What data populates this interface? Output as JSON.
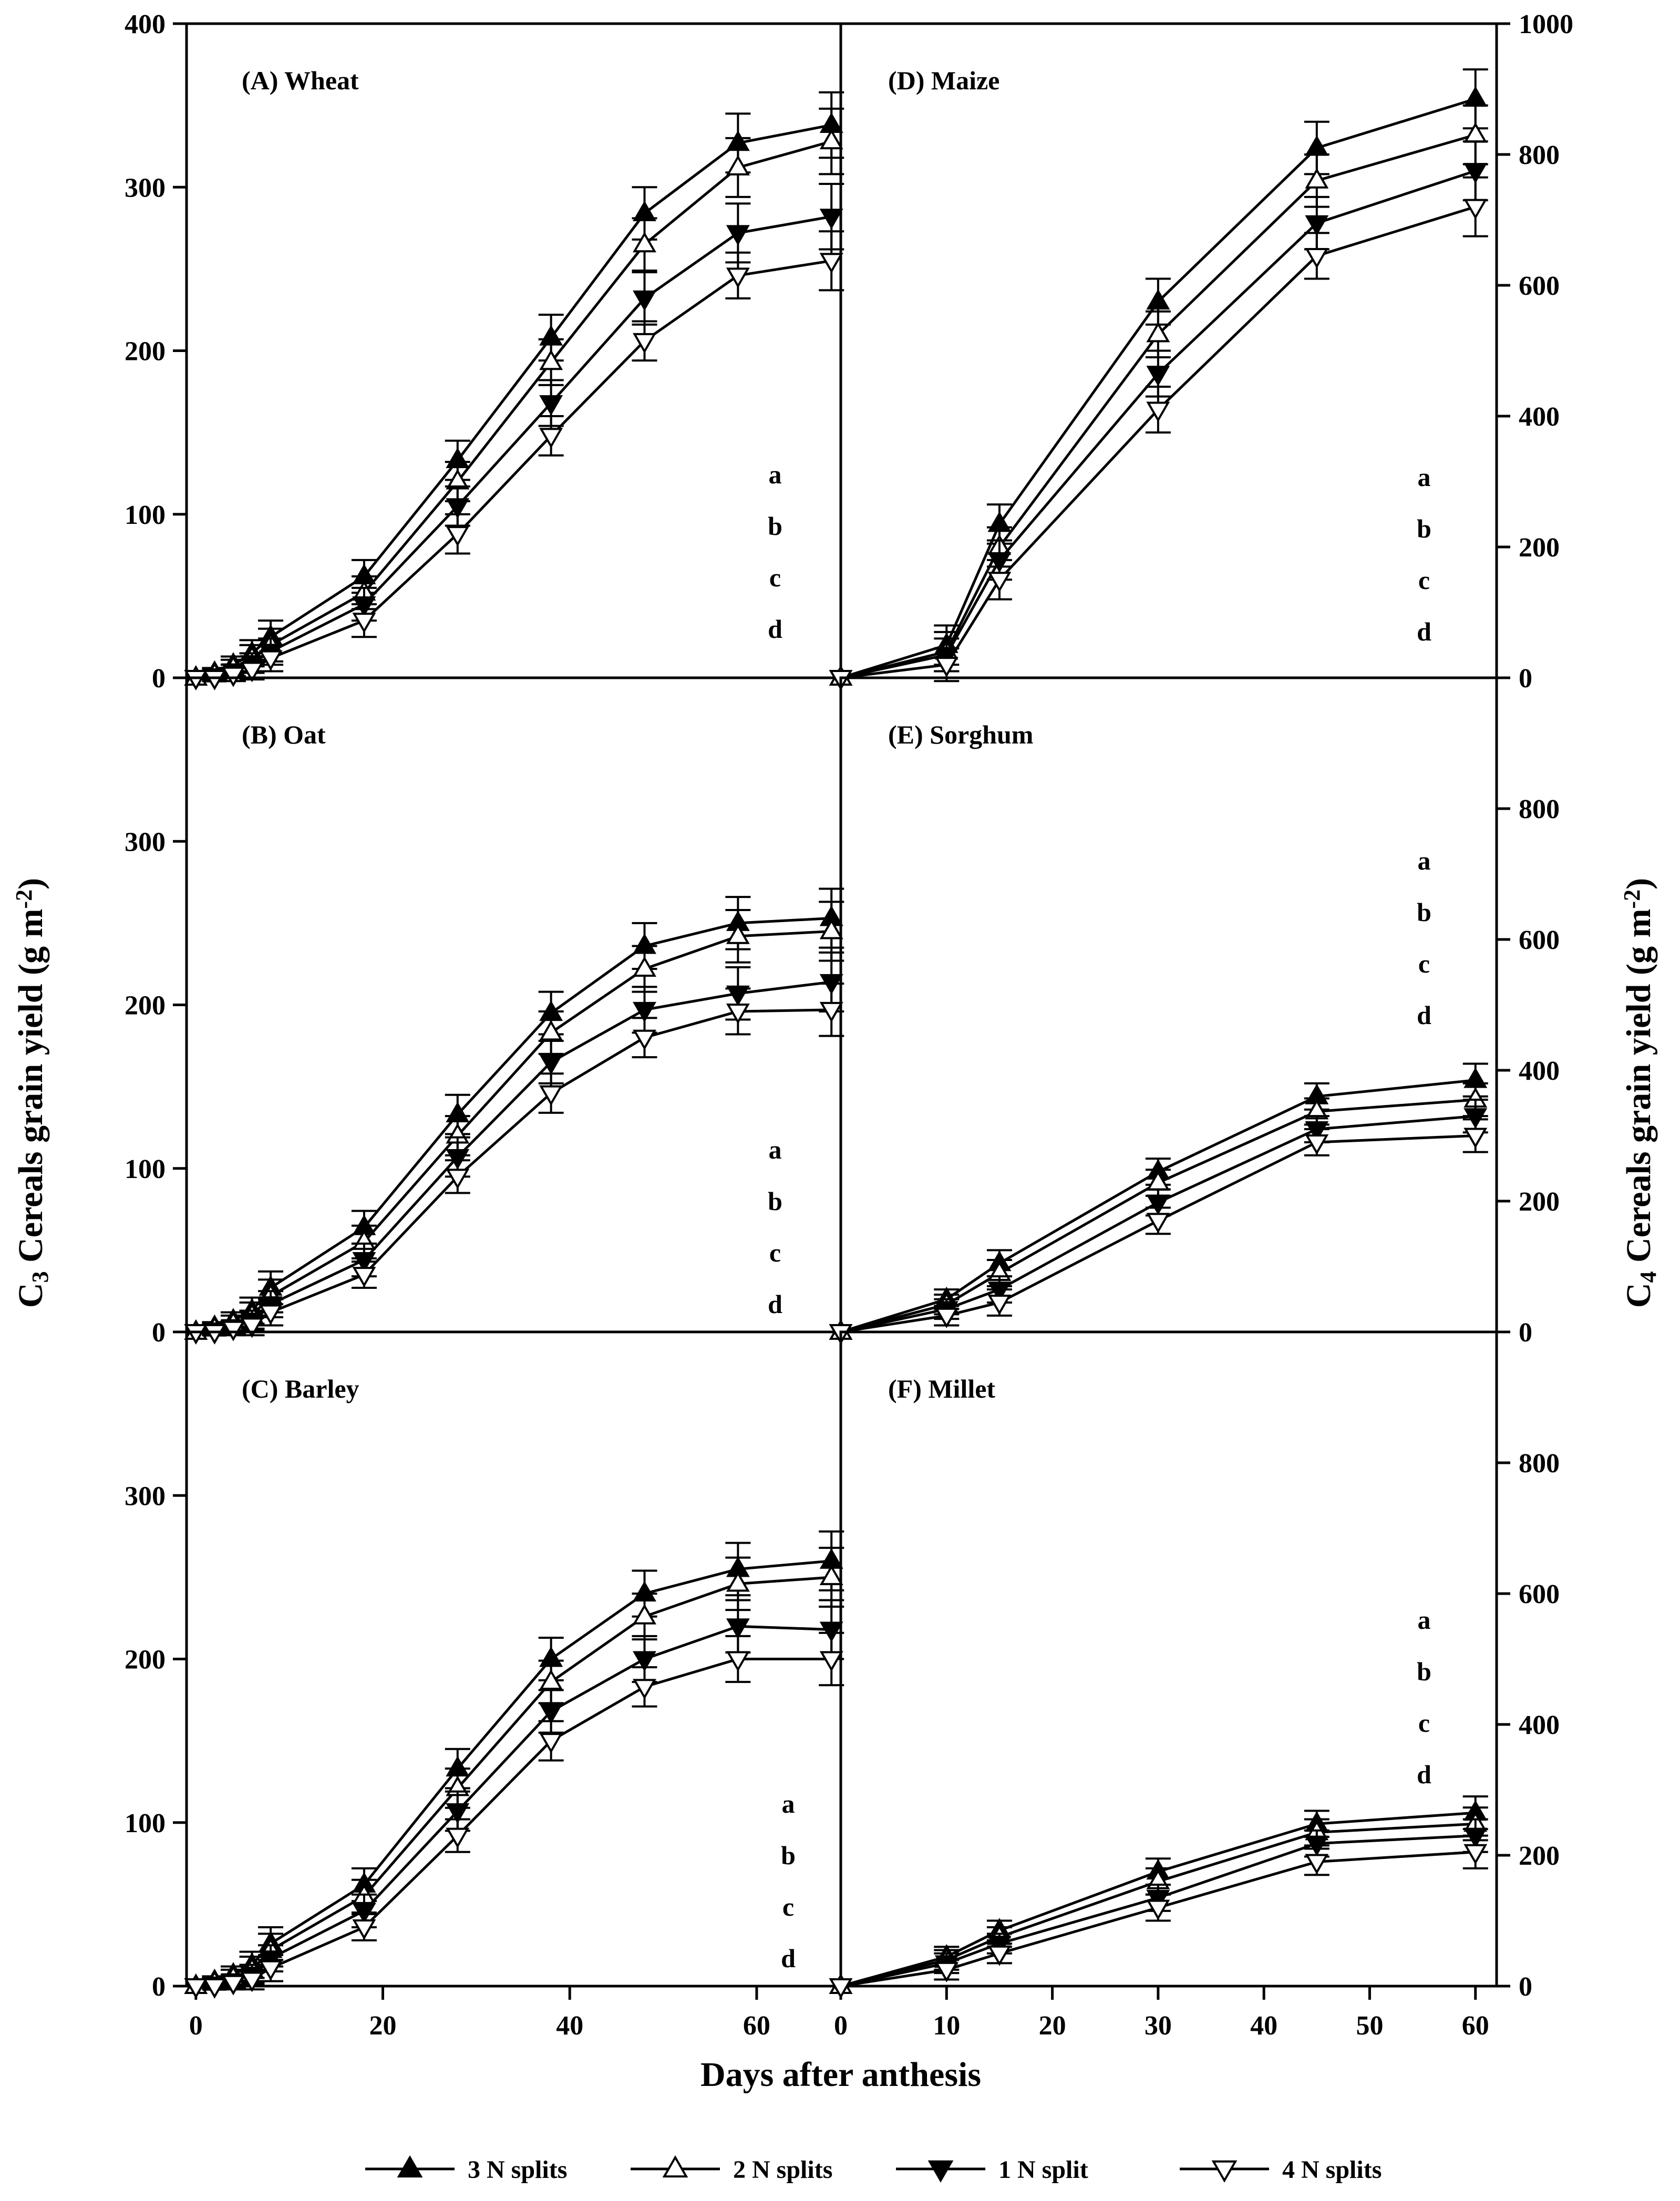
{
  "chart_data": {
    "type": "line",
    "xlabel": "Days after anthesis",
    "ylabel_left": "C3 Cereals grain yield (g m-2)",
    "ylabel_right": "C4 Cereals grain yield (g m-2)",
    "ylabel_left_parts": {
      "prefix": "C",
      "sub": "3",
      "text": " Cereals grain yield (g m",
      "sup": "-2",
      "suffix": ")"
    },
    "ylabel_right_parts": {
      "prefix": "C",
      "sub": "4",
      "text": " Cereals grain yield (g m",
      "sup": "-2",
      "suffix": ")"
    },
    "legend": [
      {
        "name": "3 N splits",
        "marker": "triangle-up",
        "filled": true
      },
      {
        "name": "2 N splits",
        "marker": "triangle-up",
        "filled": false
      },
      {
        "name": "1 N split",
        "marker": "triangle-down",
        "filled": true
      },
      {
        "name": "4 N splits",
        "marker": "triangle-down",
        "filled": false
      }
    ],
    "left_x_ticks": [
      0,
      20,
      40,
      60
    ],
    "right_x_ticks": [
      0,
      10,
      20,
      30,
      40,
      50,
      60
    ],
    "panels": [
      {
        "title": "(A) Wheat",
        "side": "left",
        "row": 0,
        "xlim": [
          -1,
          69
        ],
        "ylim": [
          0,
          400
        ],
        "yticks": [
          "0",
          "100",
          "200",
          "300",
          "400"
        ],
        "letters": [
          "a",
          "b",
          "c",
          "d"
        ],
        "x": [
          0,
          2,
          4,
          6,
          8,
          18,
          28,
          38,
          48,
          58,
          68
        ],
        "series": [
          {
            "name": "3 N splits",
            "values": [
              0,
              3,
              8,
              15,
              25,
              62,
              133,
              208,
              284,
              327,
              338
            ],
            "err": [
              0,
              3,
              5,
              8,
              10,
              10,
              12,
              14,
              16,
              18,
              20
            ]
          },
          {
            "name": "2 N splits",
            "values": [
              0,
              2,
              6,
              12,
              20,
              52,
              120,
              193,
              265,
              312,
              328
            ],
            "err": [
              0,
              3,
              5,
              8,
              10,
              10,
              12,
              14,
              16,
              18,
              20
            ]
          },
          {
            "name": "1 N split",
            "values": [
              0,
              1,
              4,
              9,
              16,
              45,
              105,
              168,
              232,
              272,
              282
            ],
            "err": [
              0,
              2,
              4,
              6,
              8,
              10,
              12,
              14,
              16,
              18,
              20
            ]
          },
          {
            "name": "4 N splits",
            "values": [
              0,
              0,
              2,
              5,
              12,
              35,
              88,
              148,
              206,
              246,
              255
            ],
            "err": [
              0,
              2,
              4,
              6,
              8,
              10,
              12,
              12,
              12,
              14,
              18
            ]
          }
        ]
      },
      {
        "title": "(B) Oat",
        "side": "left",
        "row": 1,
        "xlim": [
          -1,
          69
        ],
        "ylim": [
          0,
          400
        ],
        "yticks": [
          "0",
          "100",
          "200",
          "300"
        ],
        "letters": [
          "a",
          "b",
          "c",
          "d"
        ],
        "x": [
          0,
          2,
          4,
          6,
          8,
          18,
          28,
          38,
          48,
          58,
          68
        ],
        "series": [
          {
            "name": "3 N splits",
            "values": [
              0,
              3,
              7,
              13,
              27,
              64,
              133,
              195,
              236,
              250,
              253
            ],
            "err": [
              0,
              3,
              5,
              8,
              10,
              10,
              12,
              13,
              14,
              16,
              18
            ]
          },
          {
            "name": "2 N splits",
            "values": [
              0,
              2,
              5,
              10,
              22,
              55,
              120,
              183,
              222,
              242,
              245
            ],
            "err": [
              0,
              3,
              5,
              8,
              10,
              10,
              12,
              13,
              14,
              16,
              18
            ]
          },
          {
            "name": "1 N split",
            "values": [
              0,
              1,
              3,
              7,
              17,
              44,
              107,
              165,
              197,
              207,
              214
            ],
            "err": [
              0,
              2,
              4,
              6,
              8,
              10,
              12,
              13,
              14,
              16,
              18
            ]
          },
          {
            "name": "4 N splits",
            "values": [
              0,
              0,
              2,
              4,
              12,
              35,
              95,
              146,
              180,
              196,
              197
            ],
            "err": [
              0,
              2,
              4,
              6,
              8,
              8,
              10,
              12,
              12,
              14,
              16
            ]
          }
        ]
      },
      {
        "title": "(C) Barley",
        "side": "left",
        "row": 2,
        "xlim": [
          -1,
          69
        ],
        "ylim": [
          0,
          400
        ],
        "yticks": [
          "0",
          "100",
          "200",
          "300"
        ],
        "letters": [
          "a",
          "b",
          "c",
          "d"
        ],
        "x": [
          0,
          2,
          4,
          6,
          8,
          18,
          28,
          38,
          48,
          58,
          68
        ],
        "series": [
          {
            "name": "3 N splits",
            "values": [
              0,
              3,
              7,
              13,
              26,
              62,
              133,
              200,
              240,
              255,
              260
            ],
            "err": [
              0,
              3,
              5,
              8,
              10,
              10,
              12,
              13,
              14,
              16,
              18
            ]
          },
          {
            "name": "2 N splits",
            "values": [
              0,
              2,
              5,
              10,
              22,
              55,
              121,
              186,
              226,
              246,
              250
            ],
            "err": [
              0,
              3,
              5,
              8,
              10,
              10,
              12,
              13,
              14,
              16,
              18
            ]
          },
          {
            "name": "1 N split",
            "values": [
              0,
              1,
              3,
              7,
              17,
              46,
              107,
              168,
              200,
              220,
              218
            ],
            "err": [
              0,
              2,
              4,
              6,
              8,
              10,
              12,
              13,
              14,
              16,
              18
            ]
          },
          {
            "name": "4 N splits",
            "values": [
              0,
              0,
              2,
              4,
              11,
              36,
              92,
              150,
              183,
              200,
              200
            ],
            "err": [
              0,
              2,
              4,
              6,
              8,
              8,
              10,
              12,
              12,
              14,
              16
            ]
          }
        ]
      },
      {
        "title": "(D) Maize",
        "side": "right",
        "row": 0,
        "xlim": [
          0,
          62
        ],
        "ylim": [
          0,
          1000
        ],
        "yticks": [
          "0",
          "200",
          "400",
          "600",
          "800",
          "1000"
        ],
        "letters": [
          "a",
          "b",
          "c",
          "d"
        ],
        "x": [
          0,
          10,
          15,
          30,
          45,
          60
        ],
        "series": [
          {
            "name": "3 N splits",
            "values": [
              0,
              50,
              235,
              575,
              810,
              885
            ],
            "err": [
              0,
              30,
              30,
              35,
              40,
              45
            ]
          },
          {
            "name": "2 N splits",
            "values": [
              0,
              40,
              200,
              525,
              760,
              830
            ],
            "err": [
              0,
              30,
              30,
              35,
              40,
              45
            ]
          },
          {
            "name": "1 N split",
            "values": [
              0,
              35,
              180,
              465,
              695,
              775
            ],
            "err": [
              0,
              25,
              30,
              35,
              40,
              45
            ]
          },
          {
            "name": "4 N splits",
            "values": [
              0,
              20,
              150,
              410,
              645,
              720
            ],
            "err": [
              0,
              25,
              30,
              35,
              35,
              45
            ]
          }
        ]
      },
      {
        "title": "(E) Sorghum",
        "side": "right",
        "row": 1,
        "xlim": [
          0,
          62
        ],
        "ylim": [
          0,
          1000
        ],
        "yticks": [
          "0",
          "200",
          "400",
          "600",
          "800"
        ],
        "letters": [
          "a",
          "b",
          "c",
          "d"
        ],
        "x": [
          0,
          10,
          15,
          30,
          45,
          60
        ],
        "series": [
          {
            "name": "3 N splits",
            "values": [
              0,
              50,
              105,
              245,
              360,
              385
            ],
            "err": [
              0,
              15,
              20,
              20,
              20,
              25
            ]
          },
          {
            "name": "2 N splits",
            "values": [
              0,
              42,
              90,
              228,
              337,
              355
            ],
            "err": [
              0,
              15,
              20,
              20,
              20,
              25
            ]
          },
          {
            "name": "1 N split",
            "values": [
              0,
              35,
              65,
              198,
              310,
              330
            ],
            "err": [
              0,
              15,
              20,
              20,
              20,
              25
            ]
          },
          {
            "name": "4 N splits",
            "values": [
              0,
              25,
              45,
              170,
              290,
              300
            ],
            "err": [
              0,
              15,
              20,
              20,
              20,
              25
            ]
          }
        ]
      },
      {
        "title": "(F) Millet",
        "side": "right",
        "row": 2,
        "xlim": [
          0,
          62
        ],
        "ylim": [
          0,
          1000
        ],
        "yticks": [
          "0",
          "200",
          "400",
          "600",
          "800"
        ],
        "letters": [
          "a",
          "b",
          "c",
          "d"
        ],
        "x": [
          0,
          10,
          15,
          30,
          45,
          60
        ],
        "series": [
          {
            "name": "3 N splits",
            "values": [
              0,
              45,
              85,
              175,
              248,
              265
            ],
            "err": [
              0,
              15,
              15,
              20,
              20,
              25
            ]
          },
          {
            "name": "2 N splits",
            "values": [
              0,
              40,
              75,
              160,
              235,
              248
            ],
            "err": [
              0,
              15,
              15,
              20,
              20,
              25
            ]
          },
          {
            "name": "1 N split",
            "values": [
              0,
              35,
              65,
              135,
              218,
              230
            ],
            "err": [
              0,
              15,
              15,
              20,
              20,
              25
            ]
          },
          {
            "name": "4 N splits",
            "values": [
              0,
              25,
              50,
              120,
              190,
              205
            ],
            "err": [
              0,
              15,
              15,
              20,
              20,
              25
            ]
          }
        ]
      }
    ]
  }
}
